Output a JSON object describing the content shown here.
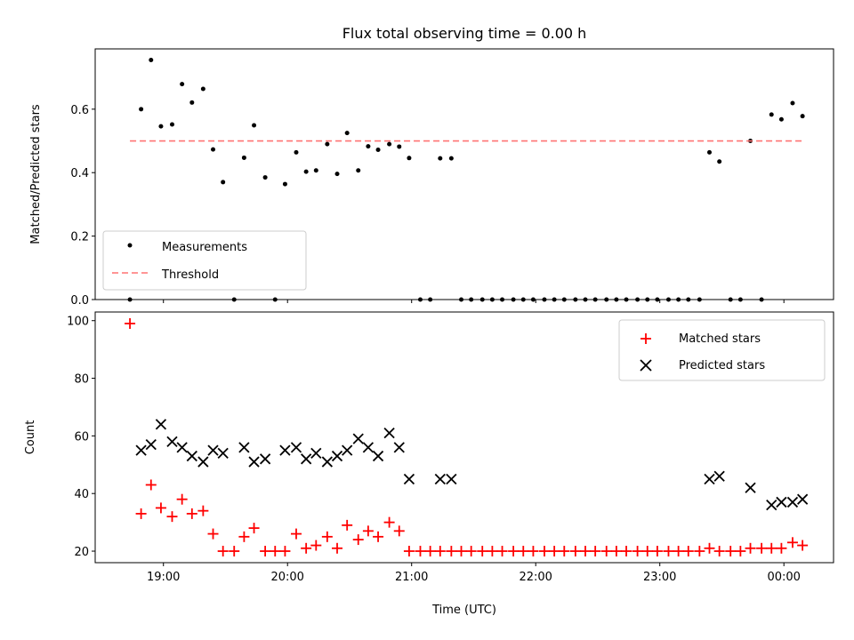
{
  "chart_data": [
    {
      "type": "scatter",
      "title": "Flux total observing time = 0.00 h",
      "xlabel": "",
      "ylabel": "Matched/Predicted stars",
      "xlim": [
        18.45,
        24.4
      ],
      "ylim": [
        0,
        0.79
      ],
      "yticks": [
        0.0,
        0.2,
        0.4,
        0.6
      ],
      "ytick_labels": [
        "0.0",
        "0.2",
        "0.4",
        "0.6"
      ],
      "legend_position": "lower-left",
      "series": [
        {
          "name": "Measurements",
          "kind": "points",
          "color": "#000000",
          "x": [
            18.73,
            18.82,
            18.9,
            18.98,
            19.07,
            19.15,
            19.23,
            19.32,
            19.4,
            19.48,
            19.57,
            19.65,
            19.73,
            19.82,
            19.9,
            19.98,
            20.07,
            20.15,
            20.23,
            20.32,
            20.4,
            20.48,
            20.57,
            20.65,
            20.73,
            20.82,
            20.9,
            20.98,
            21.07,
            21.15,
            21.23,
            21.32,
            21.4,
            21.48,
            21.57,
            21.65,
            21.73,
            21.82,
            21.9,
            21.98,
            22.07,
            22.15,
            22.23,
            22.32,
            22.4,
            22.48,
            22.57,
            22.65,
            22.73,
            22.82,
            22.9,
            22.98,
            23.07,
            23.15,
            23.23,
            23.32,
            23.4,
            23.48,
            23.57,
            23.65,
            23.73,
            23.82,
            23.9,
            23.98,
            24.07,
            24.15
          ],
          "y": [
            0,
            0.6,
            0.755,
            0.546,
            0.552,
            0.679,
            0.621,
            0.664,
            0.473,
            0.37,
            0,
            0.447,
            0.549,
            0.385,
            0,
            0.364,
            0.464,
            0.403,
            0.407,
            0.49,
            0.396,
            0.525,
            0.407,
            0.483,
            0.472,
            0.49,
            0.482,
            0.446,
            0,
            0,
            0.445,
            0.445,
            0,
            0,
            0,
            0,
            0,
            0,
            0,
            0,
            0,
            0,
            0,
            0,
            0,
            0,
            0,
            0,
            0,
            0,
            0,
            0,
            0,
            0,
            0,
            0,
            0.464,
            0.435,
            0,
            0,
            0.5,
            0,
            0.583,
            0.568,
            0.619,
            0.578
          ]
        },
        {
          "name": "Threshold",
          "kind": "line",
          "style": "dashed",
          "color": "#ff7373",
          "x": [
            18.73,
            24.15
          ],
          "y": [
            0.5,
            0.5
          ]
        }
      ]
    },
    {
      "type": "scatter",
      "xlabel": "Time (UTC)",
      "ylabel": "Count",
      "xlim": [
        18.45,
        24.4
      ],
      "ylim": [
        16,
        103
      ],
      "xticks": [
        19,
        20,
        21,
        22,
        23,
        24
      ],
      "xtick_labels": [
        "19:00",
        "20:00",
        "21:00",
        "22:00",
        "23:00",
        "00:00"
      ],
      "yticks": [
        20,
        40,
        60,
        80,
        100
      ],
      "ytick_labels": [
        "20",
        "40",
        "60",
        "80",
        "100"
      ],
      "legend_position": "upper-right",
      "series": [
        {
          "name": "Matched stars",
          "marker": "plus",
          "color": "#ff0000",
          "x": [
            18.73,
            18.82,
            18.9,
            18.98,
            19.07,
            19.15,
            19.23,
            19.32,
            19.4,
            19.48,
            19.57,
            19.65,
            19.73,
            19.82,
            19.9,
            19.98,
            20.07,
            20.15,
            20.23,
            20.32,
            20.4,
            20.48,
            20.57,
            20.65,
            20.73,
            20.82,
            20.9,
            20.98,
            21.07,
            21.15,
            21.23,
            21.32,
            21.4,
            21.48,
            21.57,
            21.65,
            21.73,
            21.82,
            21.9,
            21.98,
            22.07,
            22.15,
            22.23,
            22.32,
            22.4,
            22.48,
            22.57,
            22.65,
            22.73,
            22.82,
            22.9,
            22.98,
            23.07,
            23.15,
            23.23,
            23.32,
            23.4,
            23.48,
            23.57,
            23.65,
            23.73,
            23.82,
            23.9,
            23.98,
            24.07,
            24.15
          ],
          "y": [
            99,
            33,
            43,
            35,
            32,
            38,
            33,
            34,
            26,
            20,
            20,
            25,
            28,
            20,
            20,
            20,
            26,
            21,
            22,
            25,
            21,
            29,
            24,
            27,
            25,
            30,
            27,
            20,
            20,
            20,
            20,
            20,
            20,
            20,
            20,
            20,
            20,
            20,
            20,
            20,
            20,
            20,
            20,
            20,
            20,
            20,
            20,
            20,
            20,
            20,
            20,
            20,
            20,
            20,
            20,
            20,
            21,
            20,
            20,
            20,
            21,
            21,
            21,
            21,
            23,
            22
          ]
        },
        {
          "name": "Predicted stars",
          "marker": "x",
          "color": "#000000",
          "x": [
            18.82,
            18.9,
            18.98,
            19.07,
            19.15,
            19.23,
            19.32,
            19.4,
            19.48,
            19.65,
            19.73,
            19.82,
            19.98,
            20.07,
            20.15,
            20.23,
            20.32,
            20.4,
            20.48,
            20.57,
            20.65,
            20.73,
            20.82,
            20.9,
            20.98,
            21.23,
            21.32,
            23.4,
            23.48,
            23.73,
            23.9,
            23.98,
            24.07,
            24.15
          ],
          "y": [
            55,
            57,
            64,
            58,
            56,
            53,
            51,
            55,
            54,
            56,
            51,
            52,
            55,
            56,
            52,
            54,
            51,
            53,
            55,
            59,
            56,
            53,
            61,
            56,
            45,
            45,
            45,
            45,
            46,
            42,
            36,
            37,
            37,
            38
          ]
        }
      ]
    }
  ]
}
